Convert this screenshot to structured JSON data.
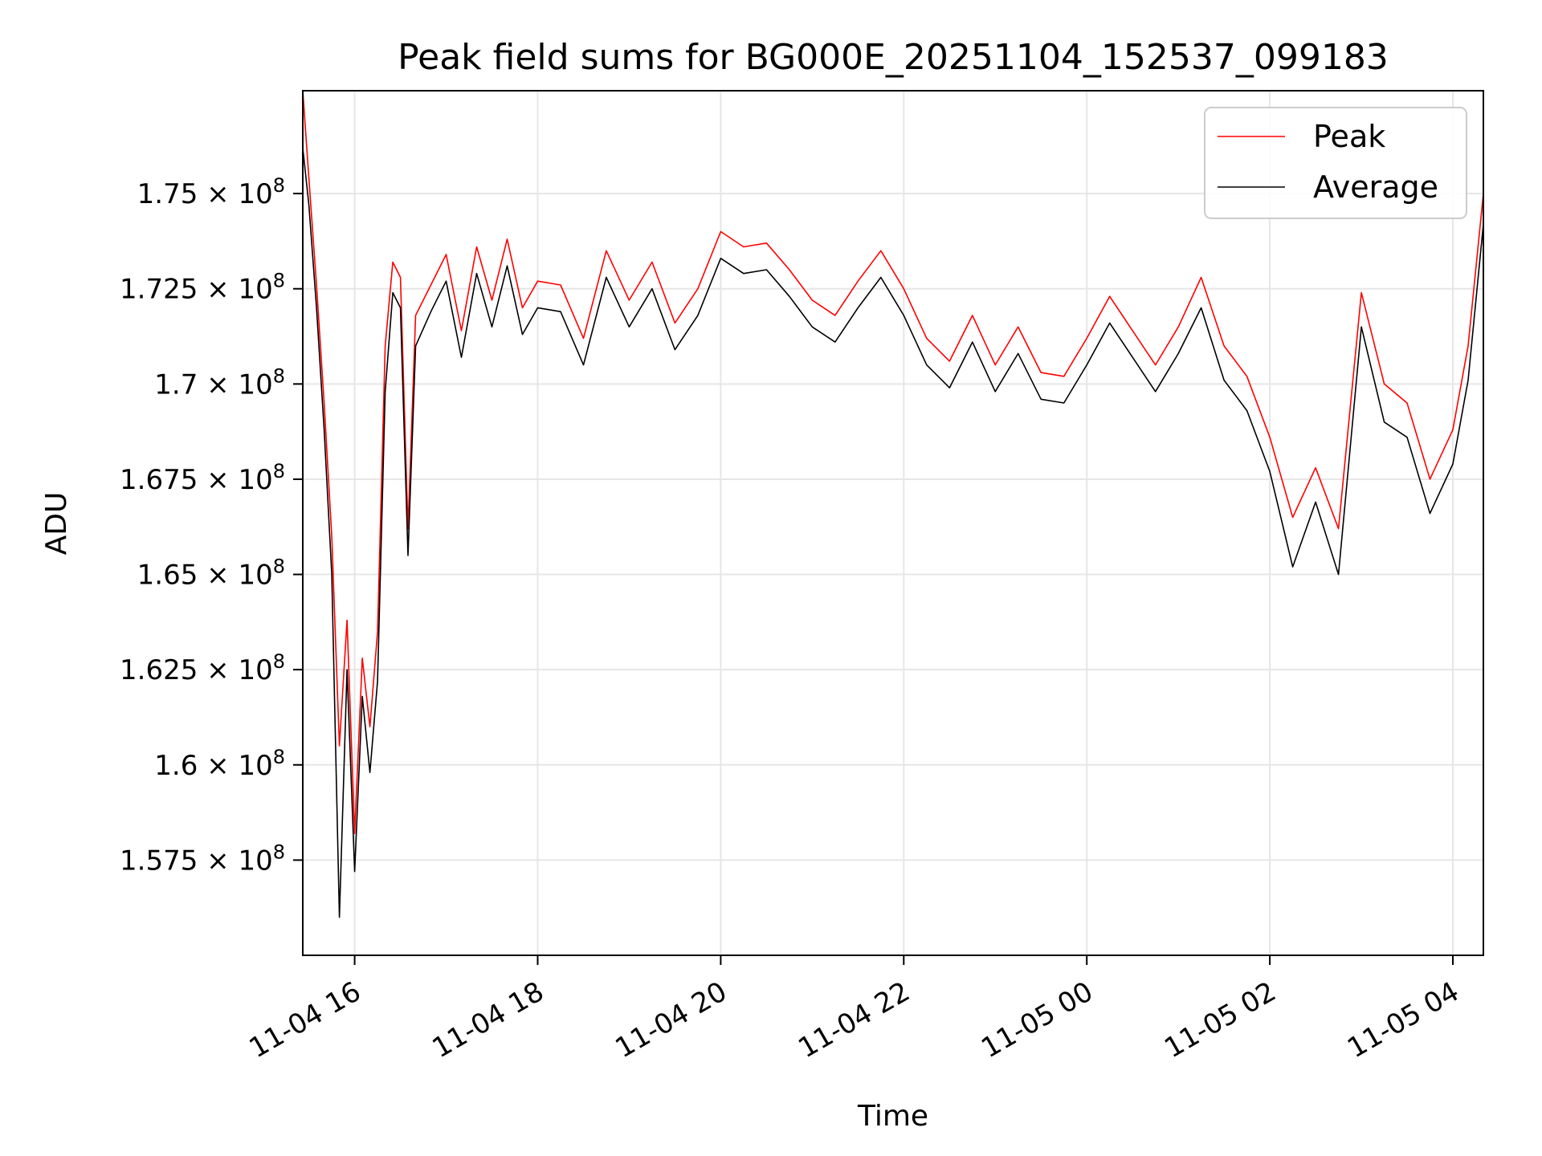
{
  "chart_data": {
    "type": "line",
    "title": "Peak field sums for BG000E_20251104_152537_099183",
    "xlabel": "Time",
    "ylabel": "ADU",
    "grid": true,
    "legend_position": "top-right",
    "xlim": [
      "11-04 15:26",
      "11-05 04:20"
    ],
    "ylim": [
      155000000,
      177700000
    ],
    "x_ticks": [
      "11-04 16",
      "11-04 18",
      "11-04 20",
      "11-04 22",
      "11-05 00",
      "11-05 02",
      "11-05 04"
    ],
    "y_ticks": [
      {
        "value": 175000000,
        "mantissa": "1.75"
      },
      {
        "value": 172500000,
        "mantissa": "1.725"
      },
      {
        "value": 170000000,
        "mantissa": "1.7"
      },
      {
        "value": 167500000,
        "mantissa": "1.675"
      },
      {
        "value": 165000000,
        "mantissa": "1.65"
      },
      {
        "value": 162500000,
        "mantissa": "1.625"
      },
      {
        "value": 160000000,
        "mantissa": "1.6"
      },
      {
        "value": 157500000,
        "mantissa": "1.575"
      }
    ],
    "y_tick_base": "10",
    "y_tick_exponent": "8",
    "times": [
      "11-04 15:26",
      "11-04 15:30",
      "11-04 15:35",
      "11-04 15:40",
      "11-04 15:45",
      "11-04 15:50",
      "11-04 15:55",
      "11-04 16:00",
      "11-04 16:05",
      "11-04 16:10",
      "11-04 16:15",
      "11-04 16:20",
      "11-04 16:25",
      "11-04 16:30",
      "11-04 16:35",
      "11-04 16:40",
      "11-04 16:50",
      "11-04 17:00",
      "11-04 17:10",
      "11-04 17:20",
      "11-04 17:30",
      "11-04 17:40",
      "11-04 17:50",
      "11-04 18:00",
      "11-04 18:15",
      "11-04 18:30",
      "11-04 18:45",
      "11-04 19:00",
      "11-04 19:15",
      "11-04 19:30",
      "11-04 19:45",
      "11-04 20:00",
      "11-04 20:15",
      "11-04 20:30",
      "11-04 20:45",
      "11-04 21:00",
      "11-04 21:15",
      "11-04 21:30",
      "11-04 21:45",
      "11-04 22:00",
      "11-04 22:15",
      "11-04 22:30",
      "11-04 22:45",
      "11-04 23:00",
      "11-04 23:15",
      "11-04 23:30",
      "11-04 23:45",
      "11-05 00:00",
      "11-05 00:15",
      "11-05 00:30",
      "11-05 00:45",
      "11-05 01:00",
      "11-05 01:15",
      "11-05 01:30",
      "11-05 01:45",
      "11-05 02:00",
      "11-05 02:15",
      "11-05 02:30",
      "11-05 02:45",
      "11-05 03:00",
      "11-05 03:15",
      "11-05 03:30",
      "11-05 03:45",
      "11-05 04:00",
      "11-05 04:10",
      "11-05 04:20"
    ],
    "series": [
      {
        "name": "Peak",
        "color": "#ff0000",
        "values": [
          177700000,
          175400000,
          172600000,
          169500000,
          166000000,
          160500000,
          163800000,
          158200000,
          162800000,
          161000000,
          163500000,
          171000000,
          173200000,
          172800000,
          166200000,
          171800000,
          172600000,
          173400000,
          171400000,
          173600000,
          172200000,
          173800000,
          172000000,
          172700000,
          172600000,
          171200000,
          173500000,
          172200000,
          173200000,
          171600000,
          172500000,
          174000000,
          173600000,
          173700000,
          173000000,
          172200000,
          171800000,
          172700000,
          173500000,
          172500000,
          171200000,
          170600000,
          171800000,
          170500000,
          171500000,
          170300000,
          170200000,
          171200000,
          172300000,
          171400000,
          170500000,
          171500000,
          172800000,
          171000000,
          170200000,
          168600000,
          166500000,
          167800000,
          166200000,
          172400000,
          170000000,
          169500000,
          167500000,
          168800000,
          171000000,
          175000000
        ]
      },
      {
        "name": "Average",
        "color": "#000000",
        "values": [
          176200000,
          174700000,
          172000000,
          168800000,
          165000000,
          156000000,
          162500000,
          157200000,
          161800000,
          159800000,
          162200000,
          169800000,
          172400000,
          172000000,
          165500000,
          171000000,
          171900000,
          172700000,
          170700000,
          172900000,
          171500000,
          173100000,
          171300000,
          172000000,
          171900000,
          170500000,
          172800000,
          171500000,
          172500000,
          170900000,
          171800000,
          173300000,
          172900000,
          173000000,
          172300000,
          171500000,
          171100000,
          172000000,
          172800000,
          171800000,
          170500000,
          169900000,
          171100000,
          169800000,
          170800000,
          169600000,
          169500000,
          170500000,
          171600000,
          170700000,
          169800000,
          170800000,
          172000000,
          170100000,
          169300000,
          167700000,
          165200000,
          166900000,
          165000000,
          171500000,
          169000000,
          168600000,
          166600000,
          167900000,
          170100000,
          174200000
        ]
      }
    ]
  }
}
